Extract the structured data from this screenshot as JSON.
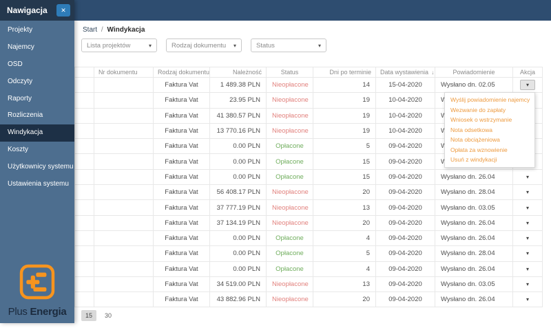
{
  "topbar": {},
  "sidebar": {
    "title": "Nawigacja",
    "items": [
      {
        "label": "Projekty",
        "active": false
      },
      {
        "label": "Najemcy",
        "active": false
      },
      {
        "label": "OSD",
        "active": false
      },
      {
        "label": "Odczyty",
        "active": false
      },
      {
        "label": "Raporty",
        "active": false
      },
      {
        "label": "Rozliczenia",
        "active": false
      },
      {
        "label": "Windykacja",
        "active": true
      },
      {
        "label": "Koszty",
        "active": false
      },
      {
        "label": "Użytkownicy systemu",
        "active": false
      },
      {
        "label": "Ustawienia systemu",
        "active": false
      }
    ],
    "brand": {
      "plus": "Plus",
      "energia": "Energia"
    }
  },
  "icons": {
    "close": "✕",
    "caret_down": "▾",
    "sort_down": "↓"
  },
  "breadcrumb": {
    "home": "Start",
    "separator": "/",
    "current": "Windykacja"
  },
  "filters": [
    {
      "placeholder": "Lista projektów"
    },
    {
      "placeholder": "Rodzaj dokumentu"
    },
    {
      "placeholder": "Status"
    }
  ],
  "table": {
    "columns": [
      {
        "label": "",
        "sorted": false
      },
      {
        "label": "Nr dokumentu",
        "sorted": false
      },
      {
        "label": "Rodzaj dokumentu",
        "sorted": false
      },
      {
        "label": "Należność",
        "sorted": false
      },
      {
        "label": "Status",
        "sorted": false
      },
      {
        "label": "Dni po terminie",
        "sorted": false
      },
      {
        "label": "Data wystawienia",
        "sorted": true
      },
      {
        "label": "Powiadomienie",
        "sorted": false
      },
      {
        "label": "Akcja",
        "sorted": false
      }
    ],
    "rows": [
      {
        "nr": "",
        "rodzaj": "Faktura Vat",
        "naleznosc": "1 489.38 PLN",
        "status": "Nieopłacone",
        "dni": "14",
        "data": "15-04-2020",
        "powiadomienie": "Wysłano dn. 02.05",
        "menu_open": true
      },
      {
        "nr": "",
        "rodzaj": "Faktura Vat",
        "naleznosc": "23.95 PLN",
        "status": "Nieopłacone",
        "dni": "19",
        "data": "10-04-2020",
        "powiadomienie": "Wysłano",
        "menu_open": false
      },
      {
        "nr": "",
        "rodzaj": "Faktura Vat",
        "naleznosc": "41 380.57 PLN",
        "status": "Nieopłacone",
        "dni": "19",
        "data": "10-04-2020",
        "powiadomienie": "Wysłano",
        "menu_open": false
      },
      {
        "nr": "",
        "rodzaj": "Faktura Vat",
        "naleznosc": "13 770.16 PLN",
        "status": "Nieopłacone",
        "dni": "19",
        "data": "10-04-2020",
        "powiadomienie": "Wysłano",
        "menu_open": false
      },
      {
        "nr": "",
        "rodzaj": "Faktura Vat",
        "naleznosc": "0.00 PLN",
        "status": "Opłacone",
        "dni": "5",
        "data": "09-04-2020",
        "powiadomienie": "Wysłano",
        "menu_open": false
      },
      {
        "nr": "",
        "rodzaj": "Faktura Vat",
        "naleznosc": "0.00 PLN",
        "status": "Opłacone",
        "dni": "15",
        "data": "09-04-2020",
        "powiadomienie": "Wysłano",
        "menu_open": false
      },
      {
        "nr": "",
        "rodzaj": "Faktura Vat",
        "naleznosc": "0.00 PLN",
        "status": "Opłacone",
        "dni": "15",
        "data": "09-04-2020",
        "powiadomienie": "Wysłano dn. 26.04",
        "menu_open": false
      },
      {
        "nr": "",
        "rodzaj": "Faktura Vat",
        "naleznosc": "56 408.17 PLN",
        "status": "Nieopłacone",
        "dni": "20",
        "data": "09-04-2020",
        "powiadomienie": "Wysłano dn. 28.04",
        "menu_open": false
      },
      {
        "nr": "",
        "rodzaj": "Faktura Vat",
        "naleznosc": "37 777.19 PLN",
        "status": "Nieopłacone",
        "dni": "13",
        "data": "09-04-2020",
        "powiadomienie": "Wysłano dn. 03.05",
        "menu_open": false
      },
      {
        "nr": "",
        "rodzaj": "Faktura Vat",
        "naleznosc": "37 134.19 PLN",
        "status": "Nieopłacone",
        "dni": "20",
        "data": "09-04-2020",
        "powiadomienie": "Wysłano dn. 26.04",
        "menu_open": false
      },
      {
        "nr": "",
        "rodzaj": "Faktura Vat",
        "naleznosc": "0.00 PLN",
        "status": "Opłacone",
        "dni": "4",
        "data": "09-04-2020",
        "powiadomienie": "Wysłano dn. 26.04",
        "menu_open": false
      },
      {
        "nr": "",
        "rodzaj": "Faktura Vat",
        "naleznosc": "0.00 PLN",
        "status": "Opłacone",
        "dni": "5",
        "data": "09-04-2020",
        "powiadomienie": "Wysłano dn. 28.04",
        "menu_open": false
      },
      {
        "nr": "",
        "rodzaj": "Faktura Vat",
        "naleznosc": "0.00 PLN",
        "status": "Opłacone",
        "dni": "4",
        "data": "09-04-2020",
        "powiadomienie": "Wysłano dn. 26.04",
        "menu_open": false
      },
      {
        "nr": "",
        "rodzaj": "Faktura Vat",
        "naleznosc": "34 519.00 PLN",
        "status": "Nieopłacone",
        "dni": "13",
        "data": "09-04-2020",
        "powiadomienie": "Wysłano dn. 03.05",
        "menu_open": false
      },
      {
        "nr": "",
        "rodzaj": "Faktura Vat",
        "naleznosc": "43 882.96 PLN",
        "status": "Nieopłacone",
        "dni": "20",
        "data": "09-04-2020",
        "powiadomienie": "Wysłano dn. 26.04",
        "menu_open": false
      }
    ]
  },
  "action_menu": {
    "items": [
      "Wyślij powiadomienie najemcy",
      "Wezwanie do zapłaty",
      "Wniosek o wstrzymanie",
      "Nota odsetkowa",
      "Nota obciążeniowa",
      "Opłata za wznowienie",
      "Usuń z windykacji"
    ]
  },
  "pagination": {
    "options": [
      "15",
      "30"
    ],
    "selected": "15"
  },
  "colors": {
    "sidebar_bg": "#4d6e8f",
    "sidebar_header_bg": "#24384e",
    "active_item_bg": "#1d3046",
    "topbar_bg": "#2e4d70",
    "close_button_bg": "#2e7cb8",
    "logo_orange": "#f7941e",
    "menu_link_orange": "#ed9a3f",
    "unpaid_red": "#e2827e",
    "paid_green": "#6fad5c"
  }
}
